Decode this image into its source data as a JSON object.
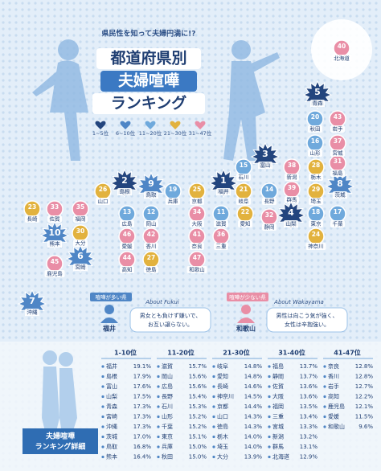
{
  "header": {
    "tagline": "県民性を知って夫婦円満に!?",
    "title": [
      "都道府県別",
      "夫婦喧嘩",
      "ランキング"
    ]
  },
  "legend": [
    {
      "label": "1~5位",
      "color": "#23457e"
    },
    {
      "label": "6~10位",
      "color": "#4f86c6"
    },
    {
      "label": "11~20位",
      "color": "#6fa9dc"
    },
    {
      "label": "21~30位",
      "color": "#e2b23e"
    },
    {
      "label": "31~47位",
      "color": "#e98ea6"
    }
  ],
  "map": {
    "markers": [
      {
        "rank": 1,
        "name": "福井",
        "shape": "star",
        "color": "#23457e"
      },
      {
        "rank": 2,
        "name": "島根",
        "shape": "star",
        "color": "#23457e"
      },
      {
        "rank": 3,
        "name": "富山",
        "shape": "star",
        "color": "#23457e"
      },
      {
        "rank": 4,
        "name": "山梨",
        "shape": "star",
        "color": "#23457e"
      },
      {
        "rank": 5,
        "name": "青森",
        "shape": "star",
        "color": "#23457e"
      },
      {
        "rank": 6,
        "name": "宮崎",
        "shape": "star",
        "color": "#4f86c6"
      },
      {
        "rank": 7,
        "name": "沖縄",
        "shape": "star",
        "color": "#4f86c6"
      },
      {
        "rank": 8,
        "name": "茨城",
        "shape": "star",
        "color": "#4f86c6"
      },
      {
        "rank": 9,
        "name": "鳥取",
        "shape": "star",
        "color": "#4f86c6"
      },
      {
        "rank": 10,
        "name": "熊本",
        "shape": "star",
        "color": "#4f86c6"
      },
      {
        "rank": 11,
        "name": "滋賀",
        "shape": "circle",
        "color": "#6fa9dc"
      },
      {
        "rank": 12,
        "name": "岡山",
        "shape": "circle",
        "color": "#6fa9dc"
      },
      {
        "rank": 13,
        "name": "広島",
        "shape": "circle",
        "color": "#6fa9dc"
      },
      {
        "rank": 14,
        "name": "長野",
        "shape": "circle",
        "color": "#6fa9dc"
      },
      {
        "rank": 15,
        "name": "石川",
        "shape": "circle",
        "color": "#6fa9dc"
      },
      {
        "rank": 16,
        "name": "山形",
        "shape": "circle",
        "color": "#6fa9dc"
      },
      {
        "rank": 17,
        "name": "千葉",
        "shape": "circle",
        "color": "#6fa9dc"
      },
      {
        "rank": 18,
        "name": "東京",
        "shape": "circle",
        "color": "#6fa9dc"
      },
      {
        "rank": 19,
        "name": "兵庫",
        "shape": "circle",
        "color": "#6fa9dc"
      },
      {
        "rank": 20,
        "name": "秋田",
        "shape": "circle",
        "color": "#6fa9dc"
      },
      {
        "rank": 21,
        "name": "岐阜",
        "shape": "circle",
        "color": "#e2b23e"
      },
      {
        "rank": 22,
        "name": "愛知",
        "shape": "circle",
        "color": "#e2b23e"
      },
      {
        "rank": 23,
        "name": "長崎",
        "shape": "circle",
        "color": "#e2b23e"
      },
      {
        "rank": 24,
        "name": "神奈川",
        "shape": "circle",
        "color": "#e2b23e"
      },
      {
        "rank": 25,
        "name": "京都",
        "shape": "circle",
        "color": "#e2b23e"
      },
      {
        "rank": 26,
        "name": "山口",
        "shape": "circle",
        "color": "#e2b23e"
      },
      {
        "rank": 27,
        "name": "徳島",
        "shape": "circle",
        "color": "#e2b23e"
      },
      {
        "rank": 28,
        "name": "栃木",
        "shape": "circle",
        "color": "#e2b23e"
      },
      {
        "rank": 29,
        "name": "埼玉",
        "shape": "circle",
        "color": "#e2b23e"
      },
      {
        "rank": 30,
        "name": "大分",
        "shape": "circle",
        "color": "#e2b23e"
      },
      {
        "rank": 31,
        "name": "福島",
        "shape": "circle",
        "color": "#e98ea6"
      },
      {
        "rank": 32,
        "name": "静岡",
        "shape": "circle",
        "color": "#e98ea6"
      },
      {
        "rank": 33,
        "name": "佐賀",
        "shape": "circle",
        "color": "#e98ea6"
      },
      {
        "rank": 34,
        "name": "大阪",
        "shape": "circle",
        "color": "#e98ea6"
      },
      {
        "rank": 35,
        "name": "福岡",
        "shape": "circle",
        "color": "#e98ea6"
      },
      {
        "rank": 36,
        "name": "三重",
        "shape": "circle",
        "color": "#e98ea6"
      },
      {
        "rank": 37,
        "name": "宮城",
        "shape": "circle",
        "color": "#e98ea6"
      },
      {
        "rank": 38,
        "name": "新潟",
        "shape": "circle",
        "color": "#e98ea6"
      },
      {
        "rank": 39,
        "name": "群馬",
        "shape": "circle",
        "color": "#e98ea6"
      },
      {
        "rank": 40,
        "name": "北海道",
        "shape": "circle",
        "color": "#e98ea6"
      },
      {
        "rank": 41,
        "name": "奈良",
        "shape": "circle",
        "color": "#e98ea6"
      },
      {
        "rank": 42,
        "name": "香川",
        "shape": "circle",
        "color": "#e98ea6"
      },
      {
        "rank": 43,
        "name": "岩手",
        "shape": "circle",
        "color": "#e98ea6"
      },
      {
        "rank": 44,
        "name": "高知",
        "shape": "circle",
        "color": "#e98ea6"
      },
      {
        "rank": 45,
        "name": "鹿児島",
        "shape": "circle",
        "color": "#e98ea6"
      },
      {
        "rank": 46,
        "name": "愛媛",
        "shape": "circle",
        "color": "#e98ea6"
      },
      {
        "rank": 47,
        "name": "和歌山",
        "shape": "circle",
        "color": "#e98ea6"
      }
    ]
  },
  "callouts": [
    {
      "tag": "喧嘩が多い県",
      "about": "About Fukui",
      "pref": "福井",
      "text": [
        "男女とも負けず嫌いで、",
        "お互い譲らない。"
      ],
      "color": "#4f86c6"
    },
    {
      "tag": "喧嘩が少ない県",
      "about": "About Wakayama",
      "pref": "和歌山",
      "text": [
        "男性は向こう気が強く、",
        "女性は辛抱強い。"
      ],
      "color": "#e98ea6"
    }
  ],
  "ranking": {
    "label": [
      "夫婦喧嘩",
      "ランキング詳細"
    ],
    "columns": [
      {
        "heading": "1-10位",
        "rows": [
          [
            "福井",
            "19.1%"
          ],
          [
            "島根",
            "17.9%"
          ],
          [
            "富山",
            "17.6%"
          ],
          [
            "山梨",
            "17.5%"
          ],
          [
            "青森",
            "17.3%"
          ],
          [
            "宮崎",
            "17.3%"
          ],
          [
            "沖縄",
            "17.3%"
          ],
          [
            "茨城",
            "17.0%"
          ],
          [
            "鳥取",
            "16.8%"
          ],
          [
            "熊本",
            "16.4%"
          ]
        ]
      },
      {
        "heading": "11-20位",
        "rows": [
          [
            "滋賀",
            "15.7%"
          ],
          [
            "岡山",
            "15.6%"
          ],
          [
            "広島",
            "15.6%"
          ],
          [
            "長野",
            "15.4%"
          ],
          [
            "石川",
            "15.3%"
          ],
          [
            "山形",
            "15.2%"
          ],
          [
            "千葉",
            "15.2%"
          ],
          [
            "東京",
            "15.1%"
          ],
          [
            "兵庫",
            "15.0%"
          ],
          [
            "秋田",
            "15.0%"
          ]
        ]
      },
      {
        "heading": "21-30位",
        "rows": [
          [
            "岐阜",
            "14.8%"
          ],
          [
            "愛知",
            "14.8%"
          ],
          [
            "長崎",
            "14.6%"
          ],
          [
            "神奈川",
            "14.5%"
          ],
          [
            "京都",
            "14.4%"
          ],
          [
            "山口",
            "14.3%"
          ],
          [
            "徳島",
            "14.3%"
          ],
          [
            "栃木",
            "14.0%"
          ],
          [
            "埼玉",
            "14.0%"
          ],
          [
            "大分",
            "13.9%"
          ]
        ]
      },
      {
        "heading": "31-40位",
        "rows": [
          [
            "福島",
            "13.7%"
          ],
          [
            "静岡",
            "13.7%"
          ],
          [
            "佐賀",
            "13.6%"
          ],
          [
            "大阪",
            "13.6%"
          ],
          [
            "福岡",
            "13.5%"
          ],
          [
            "三重",
            "13.4%"
          ],
          [
            "宮城",
            "13.3%"
          ],
          [
            "新潟",
            "13.2%"
          ],
          [
            "群馬",
            "13.1%"
          ],
          [
            "北海道",
            "12.9%"
          ]
        ]
      },
      {
        "heading": "41-47位",
        "rows": [
          [
            "奈良",
            "12.8%"
          ],
          [
            "香川",
            "12.8%"
          ],
          [
            "岩手",
            "12.7%"
          ],
          [
            "高知",
            "12.2%"
          ],
          [
            "鹿児島",
            "12.1%"
          ],
          [
            "愛媛",
            "11.5%"
          ],
          [
            "和歌山",
            "9.6%"
          ]
        ]
      }
    ]
  }
}
